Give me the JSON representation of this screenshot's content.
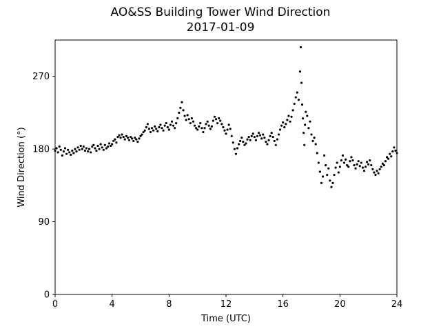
{
  "chart_data": {
    "type": "scatter",
    "title": "AO&SS Building Tower Wind Direction",
    "subtitle": "2017-01-09",
    "xlabel": "Time (UTC)",
    "ylabel": "Wind Direction (°)",
    "xlim": [
      0,
      24
    ],
    "ylim": [
      0,
      315
    ],
    "xticks": [
      0,
      4,
      8,
      12,
      16,
      20,
      24
    ],
    "yticks": [
      0,
      90,
      180,
      270
    ],
    "grid": false,
    "marker_color": "#000000",
    "series": [
      {
        "points": [
          [
            0.0,
            178
          ],
          [
            0.1,
            181
          ],
          [
            0.2,
            176
          ],
          [
            0.3,
            183
          ],
          [
            0.4,
            179
          ],
          [
            0.5,
            172
          ],
          [
            0.6,
            177
          ],
          [
            0.7,
            181
          ],
          [
            0.8,
            174
          ],
          [
            0.9,
            179
          ],
          [
            1.0,
            176
          ],
          [
            1.1,
            173
          ],
          [
            1.2,
            178
          ],
          [
            1.3,
            175
          ],
          [
            1.4,
            180
          ],
          [
            1.5,
            177
          ],
          [
            1.6,
            182
          ],
          [
            1.7,
            179
          ],
          [
            1.8,
            184
          ],
          [
            1.9,
            180
          ],
          [
            2.0,
            183
          ],
          [
            2.1,
            178
          ],
          [
            2.2,
            181
          ],
          [
            2.3,
            177
          ],
          [
            2.4,
            180
          ],
          [
            2.5,
            176
          ],
          [
            2.6,
            183
          ],
          [
            2.7,
            185
          ],
          [
            2.8,
            181
          ],
          [
            2.9,
            178
          ],
          [
            3.0,
            184
          ],
          [
            3.1,
            180
          ],
          [
            3.2,
            186
          ],
          [
            3.3,
            182
          ],
          [
            3.4,
            179
          ],
          [
            3.5,
            185
          ],
          [
            3.6,
            181
          ],
          [
            3.7,
            183
          ],
          [
            3.8,
            187
          ],
          [
            3.9,
            184
          ],
          [
            4.0,
            186
          ],
          [
            4.1,
            190
          ],
          [
            4.2,
            192
          ],
          [
            4.3,
            188
          ],
          [
            4.4,
            195
          ],
          [
            4.5,
            197
          ],
          [
            4.6,
            194
          ],
          [
            4.7,
            198
          ],
          [
            4.8,
            195
          ],
          [
            4.9,
            192
          ],
          [
            5.0,
            196
          ],
          [
            5.1,
            194
          ],
          [
            5.2,
            191
          ],
          [
            5.3,
            195
          ],
          [
            5.4,
            193
          ],
          [
            5.5,
            190
          ],
          [
            5.6,
            194
          ],
          [
            5.7,
            192
          ],
          [
            5.8,
            189
          ],
          [
            5.9,
            193
          ],
          [
            6.0,
            196
          ],
          [
            6.1,
            198
          ],
          [
            6.2,
            201
          ],
          [
            6.3,
            203
          ],
          [
            6.4,
            207
          ],
          [
            6.5,
            211
          ],
          [
            6.6,
            205
          ],
          [
            6.7,
            201
          ],
          [
            6.8,
            206
          ],
          [
            6.9,
            203
          ],
          [
            7.0,
            208
          ],
          [
            7.1,
            205
          ],
          [
            7.2,
            202
          ],
          [
            7.3,
            207
          ],
          [
            7.4,
            210
          ],
          [
            7.5,
            206
          ],
          [
            7.6,
            203
          ],
          [
            7.7,
            209
          ],
          [
            7.8,
            212
          ],
          [
            7.9,
            207
          ],
          [
            8.0,
            204
          ],
          [
            8.1,
            210
          ],
          [
            8.2,
            214
          ],
          [
            8.3,
            209
          ],
          [
            8.4,
            206
          ],
          [
            8.5,
            212
          ],
          [
            8.6,
            218
          ],
          [
            8.7,
            225
          ],
          [
            8.8,
            231
          ],
          [
            8.9,
            238
          ],
          [
            9.0,
            228
          ],
          [
            9.1,
            221
          ],
          [
            9.2,
            216
          ],
          [
            9.3,
            222
          ],
          [
            9.4,
            217
          ],
          [
            9.5,
            212
          ],
          [
            9.6,
            218
          ],
          [
            9.7,
            214
          ],
          [
            9.8,
            209
          ],
          [
            9.9,
            206
          ],
          [
            10.0,
            204
          ],
          [
            10.1,
            208
          ],
          [
            10.2,
            212
          ],
          [
            10.3,
            206
          ],
          [
            10.4,
            201
          ],
          [
            10.5,
            206
          ],
          [
            10.6,
            211
          ],
          [
            10.7,
            214
          ],
          [
            10.8,
            209
          ],
          [
            10.9,
            205
          ],
          [
            11.0,
            208
          ],
          [
            11.1,
            215
          ],
          [
            11.2,
            220
          ],
          [
            11.3,
            217
          ],
          [
            11.4,
            212
          ],
          [
            11.5,
            218
          ],
          [
            11.6,
            215
          ],
          [
            11.7,
            211
          ],
          [
            11.8,
            207
          ],
          [
            11.9,
            203
          ],
          [
            12.0,
            199
          ],
          [
            12.1,
            204
          ],
          [
            12.2,
            210
          ],
          [
            12.3,
            205
          ],
          [
            12.4,
            196
          ],
          [
            12.5,
            188
          ],
          [
            12.6,
            180
          ],
          [
            12.7,
            174
          ],
          [
            12.8,
            181
          ],
          [
            12.9,
            186
          ],
          [
            13.0,
            190
          ],
          [
            13.1,
            194
          ],
          [
            13.2,
            189
          ],
          [
            13.3,
            185
          ],
          [
            13.4,
            187
          ],
          [
            13.5,
            192
          ],
          [
            13.6,
            195
          ],
          [
            13.7,
            191
          ],
          [
            13.8,
            196
          ],
          [
            13.9,
            199
          ],
          [
            14.0,
            195
          ],
          [
            14.1,
            191
          ],
          [
            14.2,
            196
          ],
          [
            14.3,
            200
          ],
          [
            14.4,
            197
          ],
          [
            14.5,
            193
          ],
          [
            14.6,
            198
          ],
          [
            14.7,
            194
          ],
          [
            14.8,
            189
          ],
          [
            14.9,
            186
          ],
          [
            15.0,
            191
          ],
          [
            15.1,
            196
          ],
          [
            15.2,
            200
          ],
          [
            15.3,
            195
          ],
          [
            15.4,
            190
          ],
          [
            15.5,
            185
          ],
          [
            15.6,
            192
          ],
          [
            15.7,
            198
          ],
          [
            15.8,
            204
          ],
          [
            15.9,
            209
          ],
          [
            16.0,
            213
          ],
          [
            16.1,
            207
          ],
          [
            16.2,
            211
          ],
          [
            16.3,
            216
          ],
          [
            16.4,
            221
          ],
          [
            16.5,
            214
          ],
          [
            16.6,
            220
          ],
          [
            16.7,
            228
          ],
          [
            16.8,
            236
          ],
          [
            16.9,
            244
          ],
          [
            17.0,
            250
          ],
          [
            17.1,
            241
          ],
          [
            17.2,
            276
          ],
          [
            17.25,
            306
          ],
          [
            17.3,
            262
          ],
          [
            17.35,
            235
          ],
          [
            17.4,
            218
          ],
          [
            17.45,
            200
          ],
          [
            17.5,
            185
          ],
          [
            17.55,
            210
          ],
          [
            17.6,
            226
          ],
          [
            17.7,
            221
          ],
          [
            17.8,
            206
          ],
          [
            17.9,
            214
          ],
          [
            18.0,
            198
          ],
          [
            18.1,
            190
          ],
          [
            18.2,
            194
          ],
          [
            18.3,
            186
          ],
          [
            18.4,
            175
          ],
          [
            18.5,
            163
          ],
          [
            18.6,
            152
          ],
          [
            18.7,
            138
          ],
          [
            18.8,
            146
          ],
          [
            18.9,
            172
          ],
          [
            19.0,
            160
          ],
          [
            19.1,
            148
          ],
          [
            19.2,
            156
          ],
          [
            19.3,
            141
          ],
          [
            19.4,
            133
          ],
          [
            19.5,
            138
          ],
          [
            19.6,
            148
          ],
          [
            19.7,
            157
          ],
          [
            19.8,
            163
          ],
          [
            19.9,
            151
          ],
          [
            20.0,
            158
          ],
          [
            20.1,
            166
          ],
          [
            20.2,
            172
          ],
          [
            20.3,
            163
          ],
          [
            20.4,
            167
          ],
          [
            20.5,
            160
          ],
          [
            20.6,
            158
          ],
          [
            20.7,
            165
          ],
          [
            20.8,
            170
          ],
          [
            20.9,
            166
          ],
          [
            21.0,
            160
          ],
          [
            21.1,
            156
          ],
          [
            21.2,
            161
          ],
          [
            21.3,
            165
          ],
          [
            21.4,
            159
          ],
          [
            21.5,
            163
          ],
          [
            21.6,
            157
          ],
          [
            21.7,
            153
          ],
          [
            21.8,
            158
          ],
          [
            21.9,
            164
          ],
          [
            22.0,
            161
          ],
          [
            22.1,
            166
          ],
          [
            22.2,
            160
          ],
          [
            22.3,
            155
          ],
          [
            22.4,
            151
          ],
          [
            22.5,
            148
          ],
          [
            22.6,
            153
          ],
          [
            22.7,
            150
          ],
          [
            22.8,
            155
          ],
          [
            22.9,
            158
          ],
          [
            23.0,
            162
          ],
          [
            23.1,
            160
          ],
          [
            23.2,
            165
          ],
          [
            23.3,
            170
          ],
          [
            23.4,
            168
          ],
          [
            23.5,
            174
          ],
          [
            23.6,
            171
          ],
          [
            23.7,
            177
          ],
          [
            23.8,
            182
          ],
          [
            23.9,
            178
          ],
          [
            24.0,
            175
          ]
        ]
      }
    ]
  }
}
